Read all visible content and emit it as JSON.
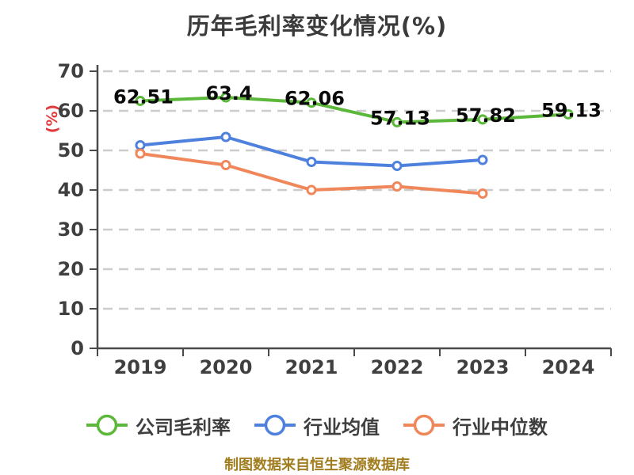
{
  "title": "历年毛利率变化情况(%)",
  "y_axis_unit": "(%)",
  "footer": "制图数据来自恒生聚源数据库",
  "colors": {
    "title": "#3b3b3b",
    "y_unit": "#e23b3b",
    "axis": "#4a4a4a",
    "tick_label": "#3f3f3f",
    "gridline": "#cccccc",
    "data_label": "#0a0a0a",
    "footer": "#a17d1f",
    "marker_fill": "#ffffff"
  },
  "chart_data": {
    "type": "line",
    "title": "历年毛利率变化情况(%)",
    "categories": [
      "2019",
      "2020",
      "2021",
      "2022",
      "2023",
      "2024"
    ],
    "series": [
      {
        "name": "公司毛利率",
        "color": "#5cb83a",
        "values": [
          62.51,
          63.4,
          62.06,
          57.13,
          57.82,
          59.13
        ],
        "data_labels": [
          "62.51",
          "63.4",
          "62.06",
          "57.13",
          "57.82",
          "59.13"
        ]
      },
      {
        "name": "行业均值",
        "color": "#4e80dd",
        "values": [
          51.3,
          53.4,
          47.1,
          46.1,
          47.6
        ]
      },
      {
        "name": "行业中位数",
        "color": "#f0875a",
        "values": [
          49.2,
          46.3,
          40.0,
          40.9,
          39.1
        ]
      }
    ],
    "xlabel": "",
    "ylabel": "(%)",
    "ylim": [
      0,
      70
    ],
    "y_ticks": [
      0,
      10,
      20,
      30,
      40,
      50,
      60,
      70
    ],
    "grid": "horizontal-dashed",
    "legend_position": "bottom"
  }
}
